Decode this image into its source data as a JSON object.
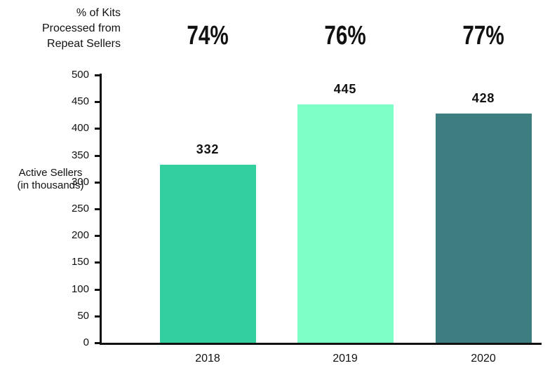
{
  "chart_data": {
    "type": "bar",
    "title": "% of Kits Processed from Repeat Sellers",
    "title_lines": [
      "% of Kits",
      "Processed from",
      "Repeat Sellers"
    ],
    "ylabel": "Active Sellers (in thousands)",
    "ylabel_lines": [
      "Active Sellers",
      "(in thousands)"
    ],
    "categories": [
      "2018",
      "2019",
      "2020"
    ],
    "values": [
      332,
      445,
      428
    ],
    "value_labels": [
      "332",
      "445",
      "428"
    ],
    "top_labels": [
      "74%",
      "76%",
      "77%"
    ],
    "bar_colors": [
      "#33cf9e",
      "#7effc8",
      "#3d7e80"
    ],
    "axis_color": "#111111",
    "background": "#ffffff",
    "ylim": [
      0,
      500
    ],
    "ytick_step": 50,
    "yticks": [
      0,
      50,
      100,
      150,
      200,
      250,
      300,
      350,
      400,
      450,
      500
    ],
    "grid": false,
    "legend": false
  }
}
